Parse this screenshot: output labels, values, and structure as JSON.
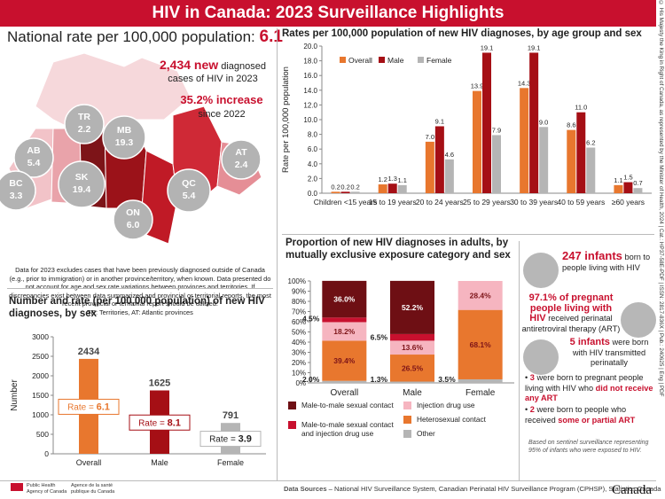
{
  "header": {
    "title": "HIV in Canada: 2023 Surveillance Highlights",
    "side_note": "© His Majesty the King in Right of Canada, as represented by the Minister of Health, 2024 | Cat.: HP37-58E-PDF | ISSN: 2817-836X | Pub.: 240625 | Eng | PDF"
  },
  "national": {
    "label": "National rate per 100,000 population:",
    "rate": 6.1,
    "new_cases": "2,434 new",
    "new_cases_text": "diagnosed cases of HIV in 2023",
    "increase": "35.2% increase",
    "increase_text": "since 2022",
    "regions": [
      {
        "name": "TR",
        "rate": "2.2"
      },
      {
        "name": "AB",
        "rate": "5.4"
      },
      {
        "name": "MB",
        "rate": "19.3"
      },
      {
        "name": "BC",
        "rate": "3.3"
      },
      {
        "name": "SK",
        "rate": "19.4"
      },
      {
        "name": "ON",
        "rate": "6.0"
      },
      {
        "name": "QC",
        "rate": "5.4"
      },
      {
        "name": "AT",
        "rate": "2.4"
      }
    ],
    "note": "Data for 2023 excludes cases that have been previously diagnosed outside of Canada (e.g., prior to immigration) or in another province/territory, when known. Data presented do not account for age and sex rate variations between provinces and territories. If discrepancies exist between data summarized and provincial or territorial reports, the most recent provincial or territorial report should be utilized.",
    "abbreviations": "TR: Territories, AT: Atlantic provinces"
  },
  "chart_data": [
    {
      "type": "bar",
      "title": "Rates per 100,000 population of new HIV diagnoses, by age group and sex",
      "ylabel": "Rate per 100,000 population",
      "categories": [
        "Children <15 years",
        "15 to 19 years",
        "20 to 24 years",
        "25 to 29 years",
        "30 to 39 years",
        "40 to 59 years",
        "≥60 years"
      ],
      "series": [
        {
          "name": "Overall",
          "color": "#e8772e",
          "values": [
            0.2,
            1.2,
            7.0,
            13.9,
            14.3,
            8.6,
            1.1
          ],
          "value_labels": [
            "0.2",
            "1.2",
            "7.0",
            "13.9",
            "14.3",
            "8.6",
            "1.1"
          ]
        },
        {
          "name": "Male",
          "color": "#a50f15",
          "values": [
            0.2,
            1.3,
            9.1,
            19.1,
            19.1,
            11.0,
            1.5
          ],
          "value_labels": [
            "0.2",
            "1.3",
            "9.1",
            "19.1",
            "19.1",
            "11.0",
            "1.5"
          ]
        },
        {
          "name": "Female",
          "color": "#b5b5b5",
          "values": [
            0.2,
            1.1,
            4.6,
            7.9,
            9.0,
            6.2,
            0.7
          ],
          "value_labels": [
            "0.2",
            "1.1",
            "4.6",
            "7.9",
            "9.0",
            "6.2",
            "0.7"
          ]
        }
      ],
      "ylim": [
        0,
        20
      ],
      "yticks": [
        {
          "value": 0,
          "label": "0.0"
        },
        {
          "value": 2,
          "label": "2.0"
        },
        {
          "value": 4,
          "label": "4.0"
        },
        {
          "value": 6,
          "label": "6.0"
        },
        {
          "value": 8,
          "label": "8.0"
        },
        {
          "value": 10,
          "label": "10.0"
        },
        {
          "value": 12,
          "label": "12.0"
        },
        {
          "value": 14,
          "label": "14.0"
        },
        {
          "value": 16,
          "label": "16.0"
        },
        {
          "value": 18,
          "label": "18.0"
        },
        {
          "value": 20,
          "label": "20.0"
        }
      ],
      "grid": false,
      "legend": "upper left"
    },
    {
      "type": "bar",
      "title": "Number and rate (per 100,000 population) of new HIV diagnoses, by sex",
      "ylabel": "Number",
      "categories": [
        "Overall",
        "Male",
        "Female"
      ],
      "values": [
        2434,
        1625,
        791
      ],
      "colors": [
        "#e8772e",
        "#a50f15",
        "#b5b5b5"
      ],
      "rate_label": "Rate =",
      "rates": [
        6.1,
        8.1,
        3.9
      ],
      "ylim": [
        0,
        3000
      ],
      "yticks": [
        0,
        500,
        1000,
        1500,
        2000,
        2500,
        3000
      ],
      "grid": false
    },
    {
      "type": "stacked_bar",
      "title": "Proportion of new HIV diagnoses in adults, by mutually exclusive exposure category and sex",
      "categories": [
        "Overall",
        "Male",
        "Female"
      ],
      "series": [
        {
          "name": "Male-to-male sexual contact",
          "color": "#6e0f14",
          "values": [
            36.0,
            52.2,
            null
          ],
          "value_labels": [
            "36.0%",
            "52.2%",
            null
          ]
        },
        {
          "name": "Male-to-male sexual contact and injection drug use",
          "color": "#c8102e",
          "values": [
            4.5,
            6.5,
            null
          ],
          "value_labels": [
            "4.5%",
            "6.5%",
            null
          ]
        },
        {
          "name": "Injection drug use",
          "color": "#f6b5c0",
          "values": [
            18.2,
            13.6,
            28.4
          ],
          "value_labels": [
            "18.2%",
            "13.6%",
            "28.4%"
          ]
        },
        {
          "name": "Heterosexual contact",
          "color": "#e8772e",
          "values": [
            39.4,
            26.5,
            68.1
          ],
          "value_labels": [
            "39.4%",
            "26.5%",
            "68.1%"
          ]
        },
        {
          "name": "Other",
          "color": "#b5b5b5",
          "values": [
            2.0,
            1.3,
            3.5
          ],
          "value_labels": [
            "2.0%",
            "1.3%",
            "3.5%"
          ]
        }
      ],
      "ylim": [
        0,
        100
      ],
      "yticks": [
        {
          "value": 0,
          "label": "0%"
        },
        {
          "value": 10,
          "label": "10%"
        },
        {
          "value": 20,
          "label": "20%"
        },
        {
          "value": 30,
          "label": "30%"
        },
        {
          "value": 40,
          "label": "40%"
        },
        {
          "value": 50,
          "label": "50%"
        },
        {
          "value": 60,
          "label": "60%"
        },
        {
          "value": 70,
          "label": "70%"
        },
        {
          "value": 80,
          "label": "80%"
        },
        {
          "value": 90,
          "label": "90%"
        },
        {
          "value": 100,
          "label": "100%"
        }
      ],
      "grid": false,
      "legend": "bottom"
    }
  ],
  "perinatal": {
    "infants": "247 infants",
    "infants_text": "born to people living with HIV",
    "art": "97.1% of pregnant people living with HIV",
    "art_text": "received perinatal antiretroviral therapy (ART)",
    "transmitted": "5 infants",
    "transmitted_text": "were born with HIV transmitted perinatally",
    "bullets": [
      {
        "count": "3",
        "text": "were born to pregnant people living with HIV who",
        "emphasis": "did not receive any ART"
      },
      {
        "count": "2",
        "text": "were born to people who received",
        "emphasis": "some or partial ART"
      }
    ],
    "footnote": "Based on sentinel surveillance representing 95% of infants who were exposed to HIV."
  },
  "footer": {
    "sources_label": "Data Sources",
    "sources": "– National HIV Surveillance System, Canadian Perinatal HIV Surveillance Program (CPHSP), Statistics Canada",
    "agency_en": "Public Health Agency of Canada",
    "agency_fr": "Agence de la santé publique du Canada",
    "wordmark": "Canada"
  }
}
